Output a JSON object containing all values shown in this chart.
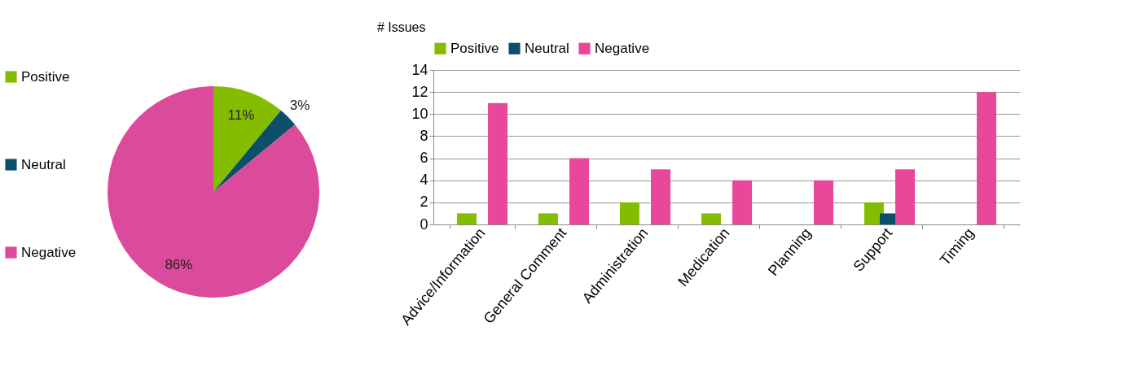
{
  "chart_data": [
    {
      "type": "pie",
      "categories": [
        "Positive",
        "Neutral",
        "Negative"
      ],
      "values": [
        11,
        3,
        86
      ],
      "colors": [
        "#84bd00",
        "#0d4f6a",
        "#dc4a9b"
      ],
      "value_labels": [
        "11%",
        "3%",
        "86%"
      ],
      "legend": "left"
    },
    {
      "type": "bar",
      "ylabel": "# Issues",
      "categories": [
        "Advice/Information",
        "General Comment",
        "Administration",
        "Medication",
        "Planning",
        "Support",
        "Timing"
      ],
      "series": [
        {
          "name": "Positive",
          "color": "#84bd00",
          "values": [
            1,
            1,
            2,
            1,
            0,
            2,
            0
          ]
        },
        {
          "name": "Neutral",
          "color": "#0d4f6a",
          "values": [
            0,
            0,
            0,
            0,
            0,
            1,
            0
          ]
        },
        {
          "name": "Negative",
          "color": "#e8479a",
          "values": [
            11,
            6,
            5,
            4,
            4,
            5,
            12
          ]
        }
      ],
      "ylim": [
        0,
        14
      ],
      "yticks": [
        0,
        2,
        4,
        6,
        8,
        10,
        12,
        14
      ],
      "grid": "y",
      "legend": "top"
    }
  ]
}
